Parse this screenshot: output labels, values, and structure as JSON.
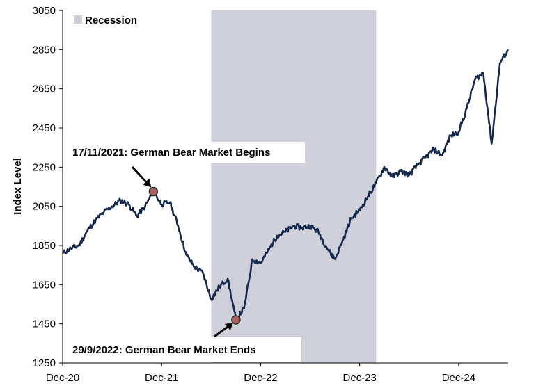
{
  "chart_data": {
    "type": "line",
    "title": "",
    "xlabel": "",
    "ylabel": "Index Level",
    "ylim": [
      1250,
      3050
    ],
    "yticks": [
      1250,
      1450,
      1650,
      1850,
      2050,
      2250,
      2450,
      2650,
      2850,
      3050
    ],
    "xlim": [
      "2020-12",
      "2025-06"
    ],
    "xticks": [
      "Dec-20",
      "Dec-21",
      "Dec-22",
      "Dec-23",
      "Dec-24"
    ],
    "grid": false,
    "legend": {
      "position": "top-left",
      "entries": [
        "Recession"
      ]
    },
    "line_color": "#14284b",
    "recession_color": "#cfd0da",
    "recession": {
      "start": "2022-06",
      "end": "2024-02"
    },
    "series": [
      {
        "name": "Index Level",
        "x": [
          "2020-12",
          "2021-01",
          "2021-02",
          "2021-03",
          "2021-04",
          "2021-05",
          "2021-06",
          "2021-07",
          "2021-08",
          "2021-09",
          "2021-10",
          "2021-11",
          "2021-12",
          "2022-01",
          "2022-02",
          "2022-03",
          "2022-04",
          "2022-05",
          "2022-06",
          "2022-07",
          "2022-08",
          "2022-09",
          "2022-10",
          "2022-11",
          "2022-12",
          "2023-01",
          "2023-02",
          "2023-03",
          "2023-04",
          "2023-05",
          "2023-06",
          "2023-07",
          "2023-08",
          "2023-09",
          "2023-10",
          "2023-11",
          "2023-12",
          "2024-01",
          "2024-02",
          "2024-03",
          "2024-04",
          "2024-05",
          "2024-06",
          "2024-07",
          "2024-08",
          "2024-09",
          "2024-10",
          "2024-11",
          "2024-12",
          "2025-01",
          "2025-02",
          "2025-03",
          "2025-04",
          "2025-05",
          "2025-06"
        ],
        "values": [
          1810,
          1835,
          1850,
          1925,
          1980,
          2020,
          2050,
          2080,
          2060,
          2000,
          2050,
          2125,
          2060,
          2070,
          1950,
          1800,
          1740,
          1710,
          1575,
          1640,
          1680,
          1470,
          1530,
          1780,
          1760,
          1830,
          1900,
          1920,
          1950,
          1940,
          1950,
          1920,
          1840,
          1780,
          1880,
          1990,
          2030,
          2100,
          2170,
          2250,
          2200,
          2230,
          2210,
          2260,
          2300,
          2340,
          2310,
          2410,
          2430,
          2550,
          2700,
          2730,
          2370,
          2780,
          2850
        ]
      }
    ],
    "annotations": [
      {
        "date": "2021-11",
        "value": 2125,
        "text": "17/11/2021: German Bear Market Begins"
      },
      {
        "date": "2022-09",
        "value": 1470,
        "text": "29/9/2022: German Bear Market Ends"
      }
    ]
  }
}
